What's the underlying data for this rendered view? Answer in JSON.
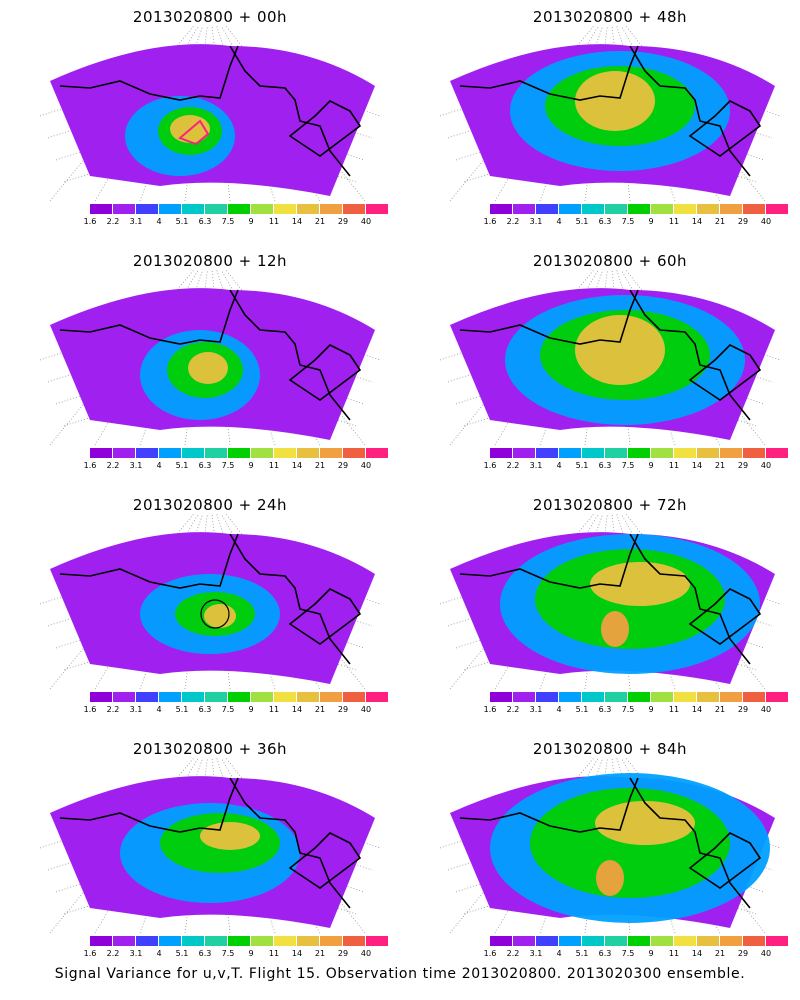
{
  "panels": [
    {
      "title": "2013020800 + 00h",
      "hour": 0
    },
    {
      "title": "2013020800 + 48h",
      "hour": 48
    },
    {
      "title": "2013020800 + 12h",
      "hour": 12
    },
    {
      "title": "2013020800 + 60h",
      "hour": 60
    },
    {
      "title": "2013020800 + 24h",
      "hour": 24
    },
    {
      "title": "2013020800 + 72h",
      "hour": 72
    },
    {
      "title": "2013020800 + 36h",
      "hour": 36
    },
    {
      "title": "2013020800 + 84h",
      "hour": 84
    }
  ],
  "colorbar": {
    "labels": [
      "1.6",
      "2.2",
      "3.1",
      "4",
      "5.1",
      "6.3",
      "7.5",
      "9",
      "11",
      "14",
      "21",
      "29",
      "40"
    ],
    "colors": [
      "#9000d8",
      "#a020f0",
      "#4040ff",
      "#00a0ff",
      "#00c8c8",
      "#20d0a0",
      "#00d000",
      "#a0e040",
      "#f0e040",
      "#e8c040",
      "#f0a040",
      "#f06040",
      "#ff2080"
    ]
  },
  "footer": "Signal Variance for u,v,T. Flight 15. Observation time 2013020800. 2013020300 ensemble."
}
